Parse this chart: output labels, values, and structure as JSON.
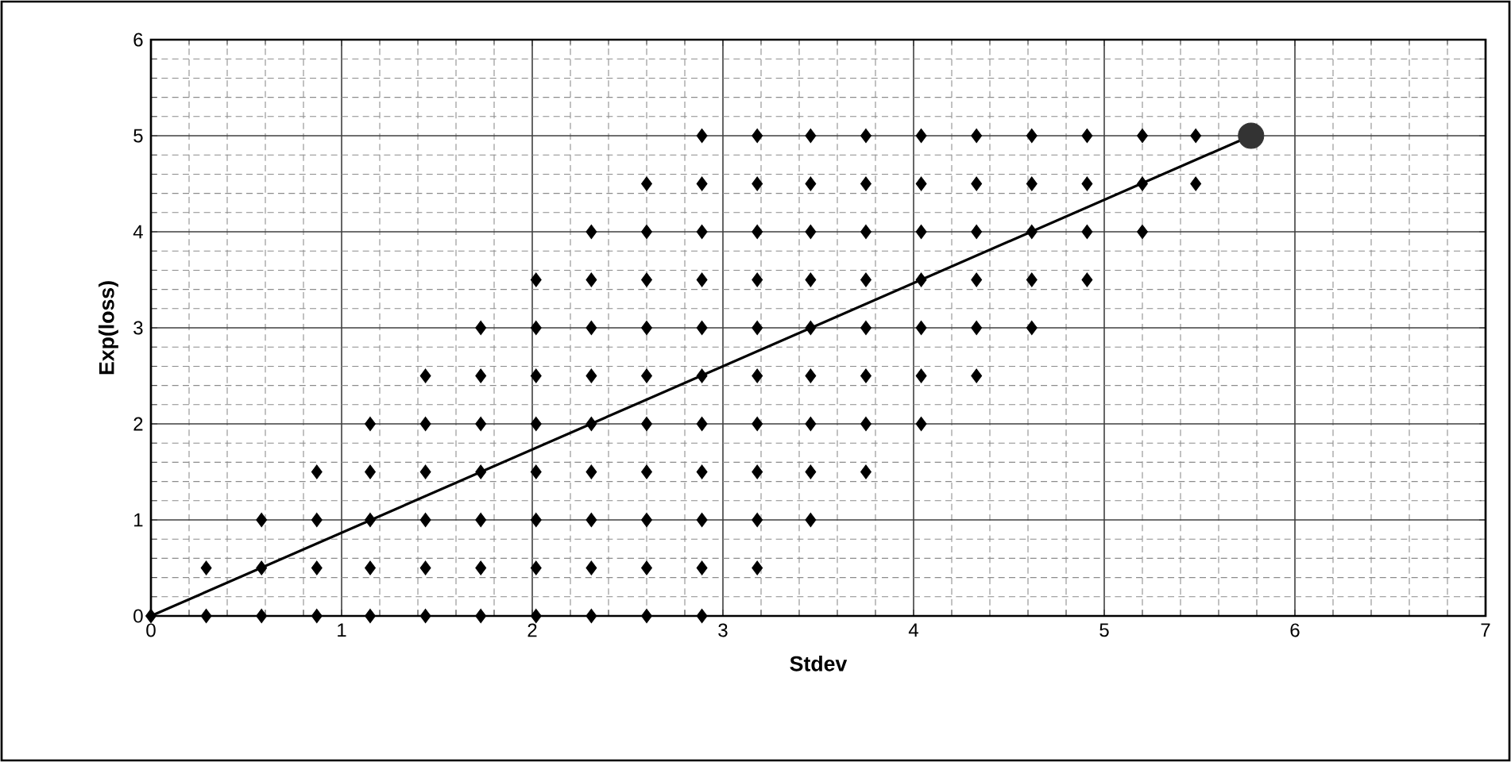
{
  "chart_data": {
    "type": "scatter",
    "xlabel": "Stdev",
    "ylabel": "Exp(loss)",
    "xlim": [
      0,
      7
    ],
    "ylim": [
      0,
      6
    ],
    "xticks": [
      0,
      1,
      2,
      3,
      4,
      5,
      6,
      7
    ],
    "yticks": [
      0,
      1,
      2,
      3,
      4,
      5,
      6
    ],
    "grid": true,
    "marker": "diamond",
    "series": [
      {
        "color": "#000000",
        "x": [
          0,
          0.29,
          0.29,
          0.58,
          0.58,
          0.58,
          0.87,
          0.87,
          0.87,
          0.87,
          1.15,
          1.15,
          1.15,
          1.15,
          1.15,
          1.44,
          1.44,
          1.44,
          1.44,
          1.44,
          1.44,
          1.73,
          1.73,
          1.73,
          1.73,
          1.73,
          1.73,
          1.73,
          2.02,
          2.02,
          2.02,
          2.02,
          2.02,
          2.02,
          2.02,
          2.02,
          2.31,
          2.31,
          2.31,
          2.31,
          2.31,
          2.31,
          2.31,
          2.31,
          2.31,
          2.6,
          2.6,
          2.6,
          2.6,
          2.6,
          2.6,
          2.6,
          2.6,
          2.6,
          2.6,
          2.89,
          2.89,
          2.89,
          2.89,
          2.89,
          2.89,
          2.89,
          2.89,
          2.89,
          2.89,
          2.89,
          3.18,
          3.18,
          3.18,
          3.18,
          3.18,
          3.18,
          3.18,
          3.18,
          3.18,
          3.18,
          3.46,
          3.46,
          3.46,
          3.46,
          3.46,
          3.46,
          3.46,
          3.46,
          3.46,
          3.75,
          3.75,
          3.75,
          3.75,
          3.75,
          3.75,
          3.75,
          3.75,
          4.04,
          4.04,
          4.04,
          4.04,
          4.04,
          4.04,
          4.04,
          4.33,
          4.33,
          4.33,
          4.33,
          4.33,
          4.33,
          4.62,
          4.62,
          4.62,
          4.62,
          4.62,
          4.91,
          4.91,
          4.91,
          4.91,
          5.2,
          5.2,
          5.2,
          5.48,
          5.48
        ],
        "values": [
          0,
          0,
          0.5,
          0,
          0.5,
          1,
          0,
          0.5,
          1,
          1.5,
          0,
          0.5,
          1,
          1.5,
          2,
          0,
          0.5,
          1,
          1.5,
          2,
          2.5,
          0,
          0.5,
          1,
          1.5,
          2,
          2.5,
          3,
          0,
          0.5,
          1,
          1.5,
          2,
          2.5,
          3,
          3.5,
          0,
          0.5,
          1,
          1.5,
          2,
          2.5,
          3,
          3.5,
          4,
          0,
          0.5,
          1,
          1.5,
          2,
          2.5,
          3,
          3.5,
          4,
          4.5,
          0,
          0.5,
          1,
          1.5,
          2,
          2.5,
          3,
          3.5,
          4,
          4.5,
          5,
          0.5,
          1,
          1.5,
          2,
          2.5,
          3,
          3.5,
          4,
          4.5,
          5,
          1,
          1.5,
          2,
          2.5,
          3,
          3.5,
          4,
          4.5,
          5,
          1.5,
          2,
          2.5,
          3,
          3.5,
          4,
          4.5,
          5,
          2,
          2.5,
          3,
          3.5,
          4,
          4.5,
          5,
          2.5,
          3,
          3.5,
          4,
          4.5,
          5,
          3,
          3.5,
          4,
          4.5,
          5,
          3.5,
          4,
          4.5,
          5,
          4,
          4.5,
          5,
          4.5,
          5
        ]
      },
      {
        "type": "line",
        "color": "#000000",
        "marker": "none",
        "line_style": "solid",
        "x": [
          0,
          5.77
        ],
        "values": [
          0,
          5
        ]
      },
      {
        "type": "scatter",
        "color": "#333333",
        "marker": "circle",
        "x": [
          5.77
        ],
        "values": [
          5
        ]
      }
    ]
  }
}
